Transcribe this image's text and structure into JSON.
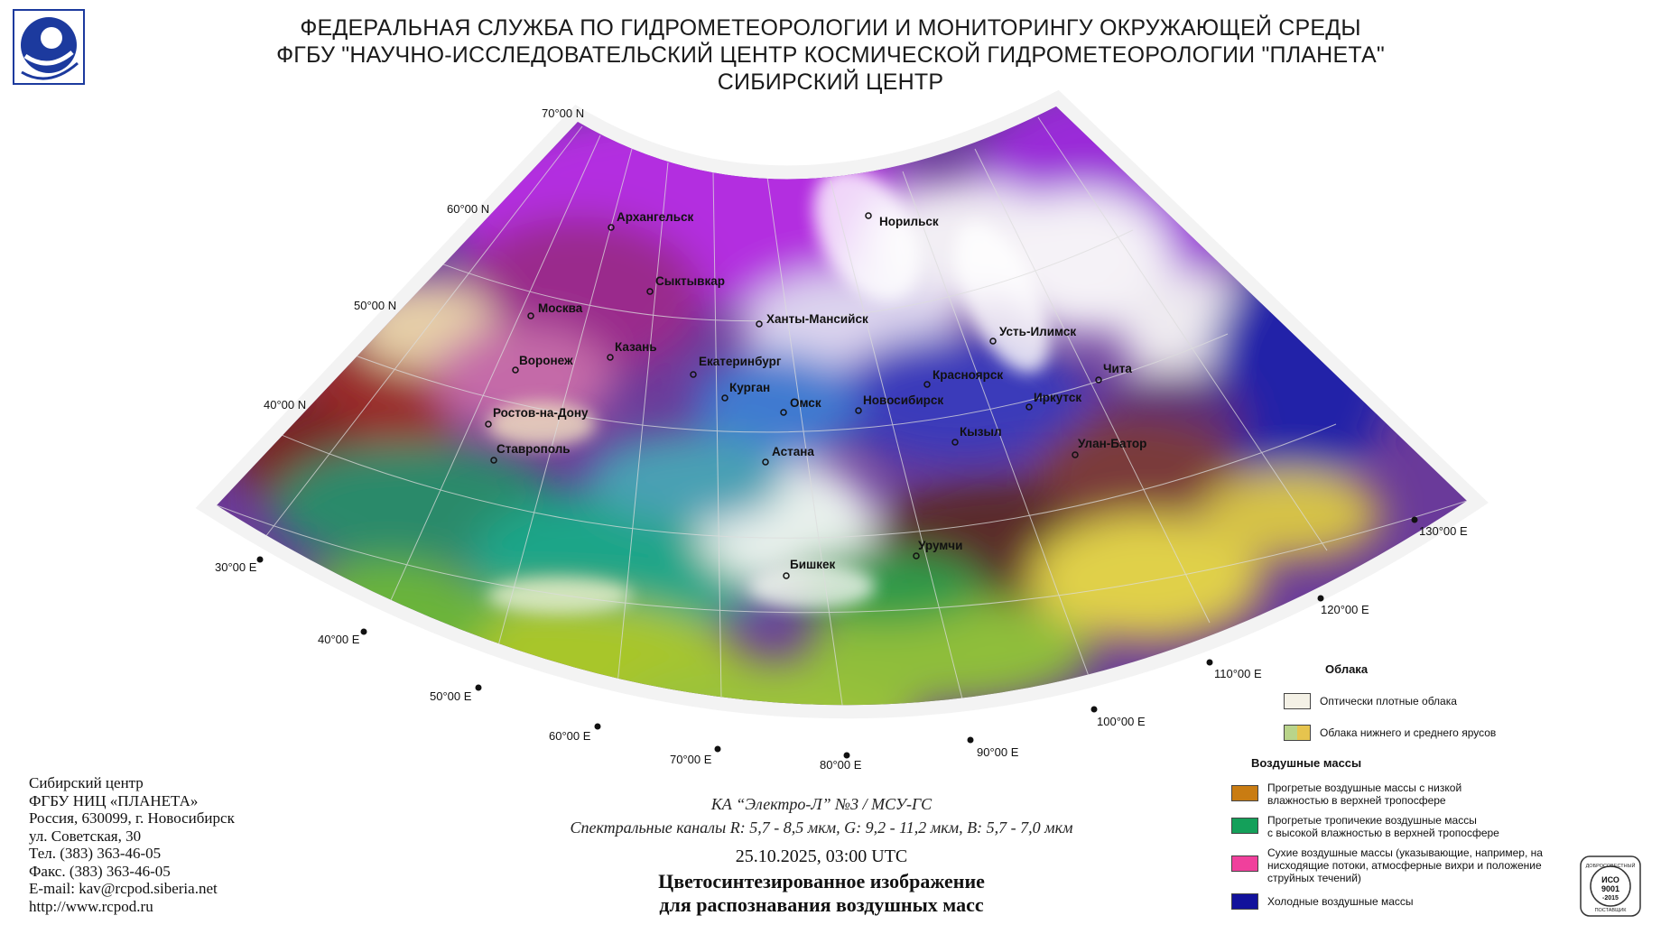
{
  "header": {
    "line1": "ФЕДЕРАЛЬНАЯ СЛУЖБА ПО ГИДРОМЕТЕОРОЛОГИИ И МОНИТОРИНГУ ОКРУЖАЮЩЕЙ СРЕДЫ",
    "line2": "ФГБУ \"НАУЧНО-ИССЛЕДОВАТЕЛЬСКИЙ ЦЕНТР КОСМИЧЕСКОЙ ГИДРОМЕТЕОРОЛОГИИ \"ПЛАНЕТА\"",
    "line3": "СИБИРСКИЙ ЦЕНТР"
  },
  "map": {
    "latitude_labels": [
      "70°00 N",
      "60°00 N",
      "50°00 N",
      "40°00 N"
    ],
    "longitude_labels": [
      "30°00 E",
      "40°00 E",
      "50°00 E",
      "60°00 E",
      "70°00 E",
      "80°00 E",
      "90°00 E",
      "100°00 E",
      "110°00 E",
      "120°00 E",
      "130°00 E"
    ],
    "cities": [
      "Архангельск",
      "Норильск",
      "Сыктывкар",
      "Москва",
      "Ханты-Мансийск",
      "Усть-Илимск",
      "Казань",
      "Воронеж",
      "Екатеринбург",
      "Красноярск",
      "Чита",
      "Курган",
      "Омск",
      "Новосибирск",
      "Иркутск",
      "Ростов-на-Дону",
      "Кызыл",
      "Улан-Батор",
      "Ставрополь",
      "Астана",
      "Урумчи",
      "Бишкек"
    ]
  },
  "footer": {
    "org1": "Сибирский центр",
    "org2": "ФГБУ НИЦ «ПЛАНЕТА»",
    "addr1": "Россия, 630099, г. Новосибирск",
    "addr2": "ул. Советская, 30",
    "tel": "Тел. (383) 363-46-05",
    "fax": "Факс. (383) 363-46-05",
    "email": "E-mail: kav@rcpod.siberia.net",
    "web": "http://www.rcpod.ru"
  },
  "caption": {
    "satellite": "КА “Электро-Л” №3 / МСУ-ГС",
    "channels": "Спектральные каналы R: 5,7 - 8,5 мкм, G: 9,2 - 11,2 мкм, B: 5,7 - 7,0 мкм",
    "datetime": "25.10.2025, 03:00 UTC",
    "title1": "Цветосинтезированное изображение",
    "title2": "для распознавания воздушных масс"
  },
  "legend": {
    "clouds_title": "Облака",
    "dense_clouds": "Оптически плотные облака",
    "low_mid_clouds": "Облака нижнего и среднего ярусов",
    "air_masses_title": "Воздушные массы",
    "warm_low_humidity_1": "Прогретые воздушные массы с низкой",
    "warm_low_humidity_2": "влажностью в верхней тропосфере",
    "warm_tropical_1": "Прогретые тропичекие воздушные массы",
    "warm_tropical_2": "с высокой влажностью в верхней тропосфере",
    "dry_1": "Сухие воздушные массы (указывающие, например, на",
    "dry_2": "нисходящие потоки, атмосферные вихри и положение",
    "dry_3": "струйных течений)",
    "cold": "Холодные воздушные массы",
    "colors": {
      "dense_clouds": "#f4f1e6",
      "low_mid_a": "#b9d48a",
      "low_mid_b": "#e6c44e",
      "warm_low_humidity": "#c97c12",
      "warm_tropical": "#14a05a",
      "dry": "#f0409c",
      "cold": "#12129c"
    }
  },
  "iso_badge": {
    "top": "ДОБРОСОВЕСТНЫЙ",
    "iso": "ИСО",
    "num": "9001",
    "year": "-2015",
    "bottom": "ПОСТАВЩИК"
  }
}
